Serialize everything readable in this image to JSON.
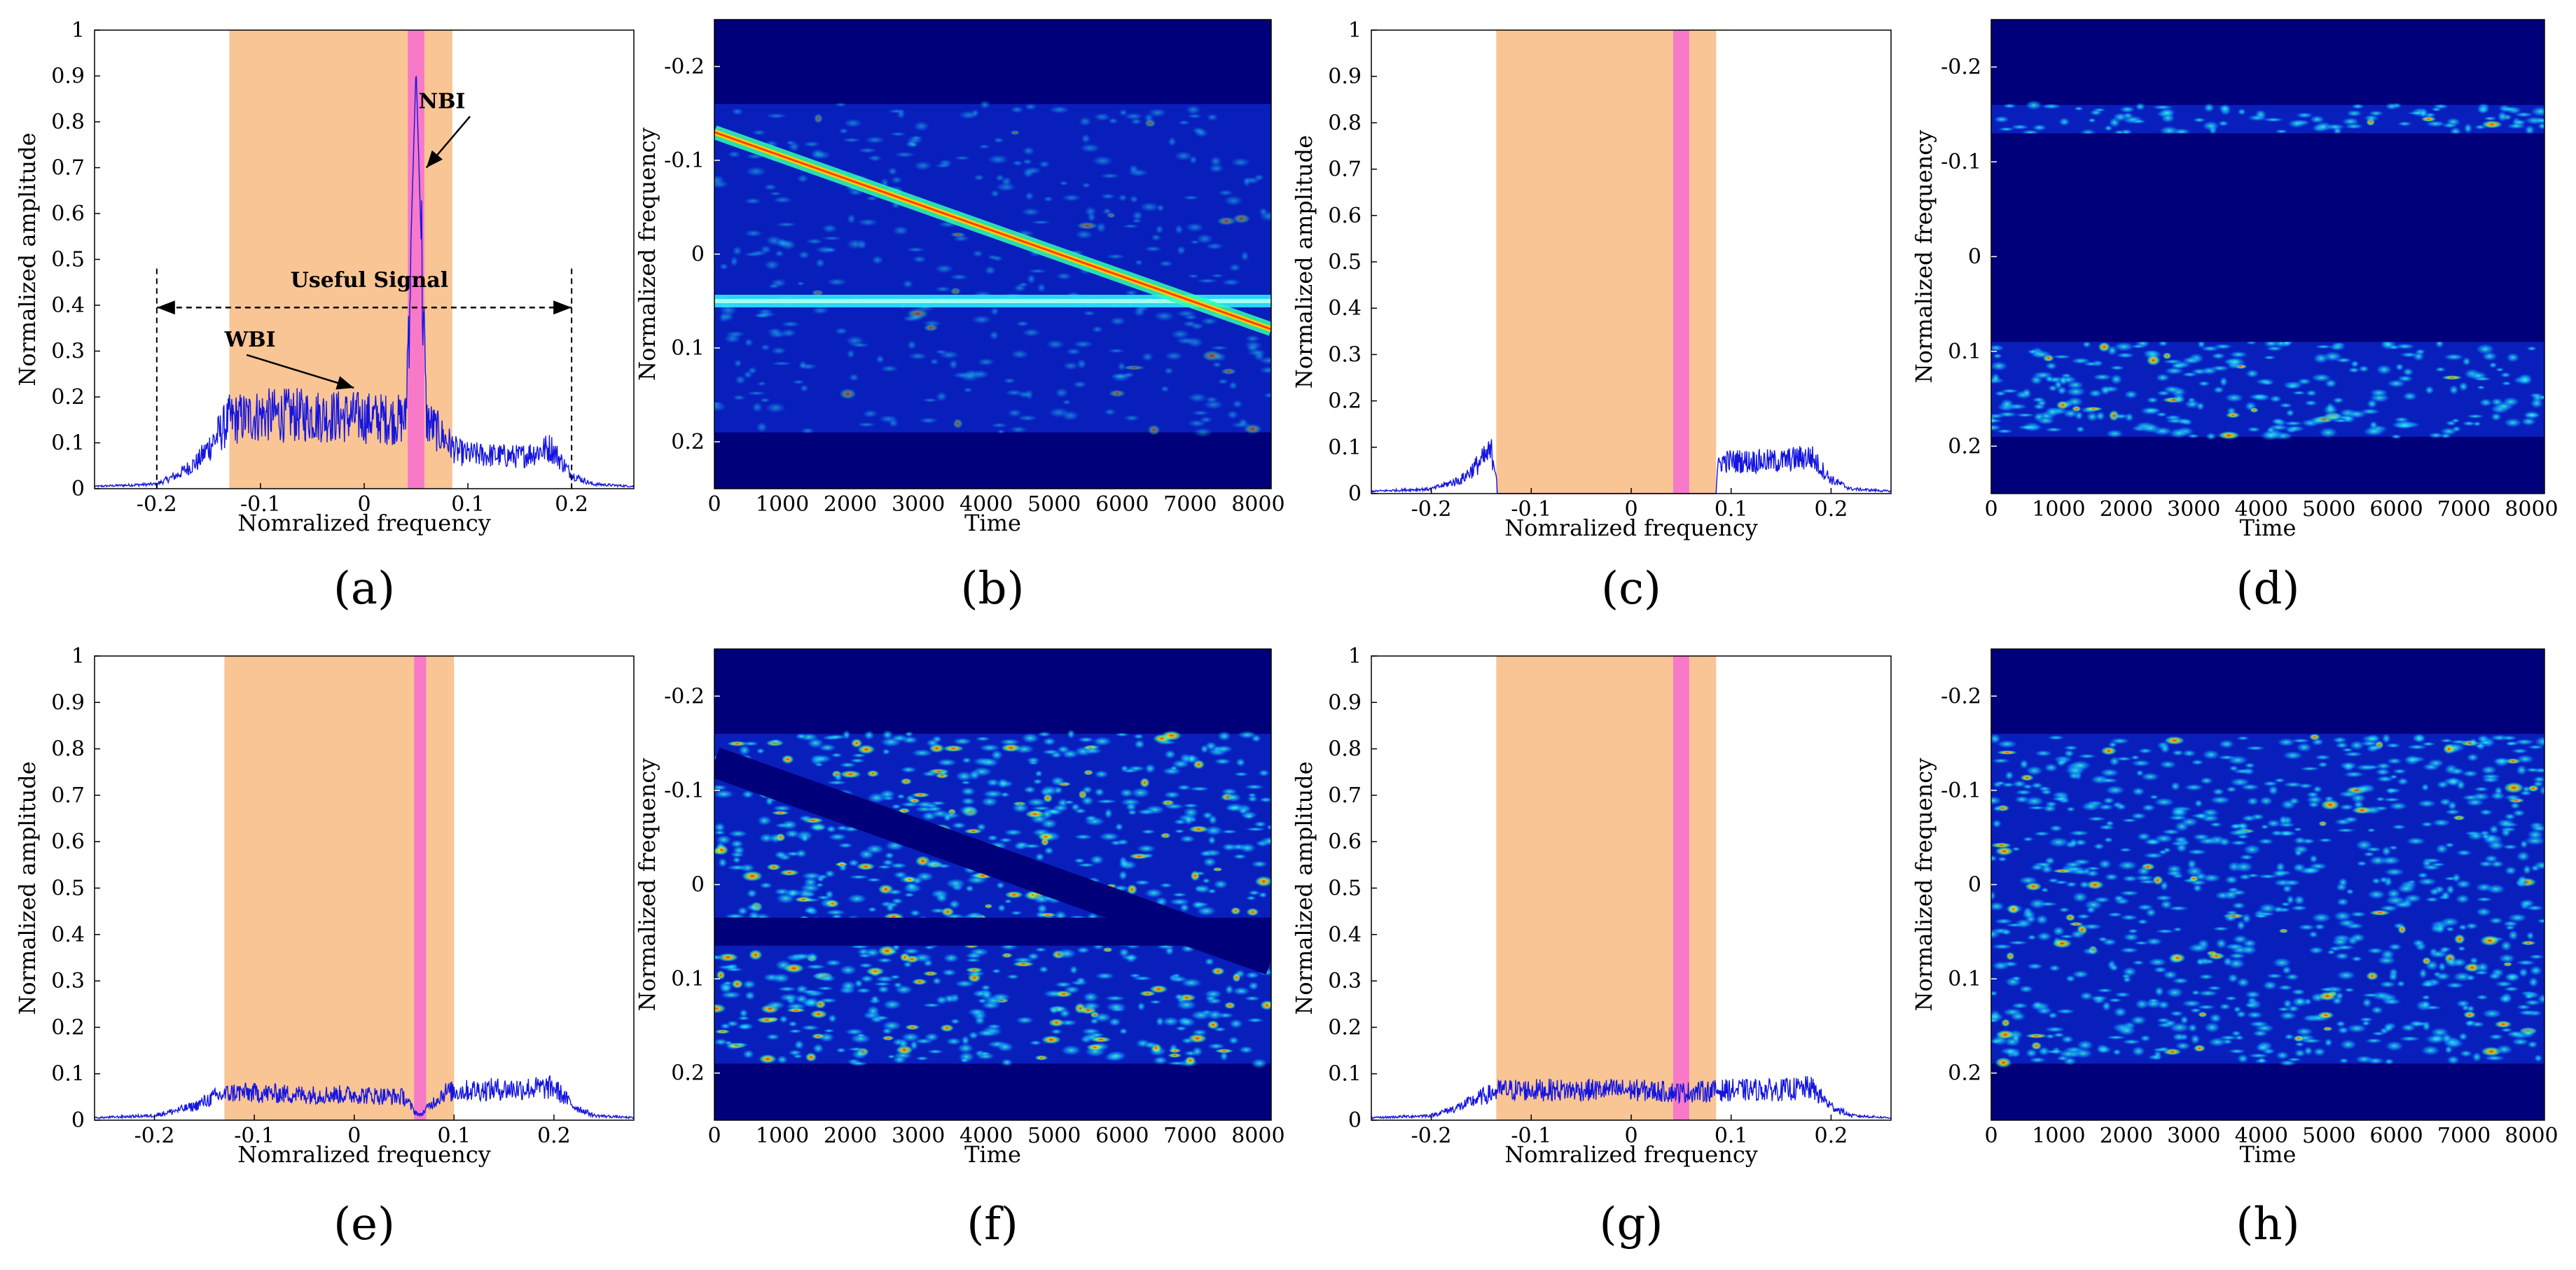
{
  "colors": {
    "band": "#f9c595",
    "nbi_band": "#f779c8",
    "trace": "#1515e0",
    "spec_bg": "#00007a",
    "axis": "#000000"
  },
  "chart_data": [
    {
      "panel": "(a)",
      "type": "line",
      "kind": "spectrum",
      "xlabel": "Nomralized frequency",
      "ylabel": "Normalized amplitude",
      "xlim": [
        -0.26,
        0.26
      ],
      "ylim": [
        0,
        1
      ],
      "xticks": [
        -0.2,
        -0.1,
        0,
        0.1,
        0.2
      ],
      "xtick_labels": [
        "-0.2",
        "-0.1",
        "0",
        "0.1",
        "0.2"
      ],
      "yticks": [
        0,
        0.1,
        0.2,
        0.3,
        0.4,
        0.5,
        0.6,
        0.7,
        0.8,
        0.9,
        1
      ],
      "ytick_labels": [
        "0",
        "0.1",
        "0.2",
        "0.3",
        "0.4",
        "0.5",
        "0.6",
        "0.7",
        "0.8",
        "0.9",
        "1"
      ],
      "band": [
        -0.13,
        0.085
      ],
      "nbi_band": [
        0.042,
        0.058
      ],
      "series": [
        {
          "name": "spectrum",
          "x": [
            -0.26,
            -0.2,
            -0.18,
            -0.16,
            -0.15,
            -0.14,
            -0.13,
            -0.1,
            -0.05,
            0,
            0.04,
            0.05,
            0.06,
            0.09,
            0.1,
            0.15,
            0.18,
            0.2,
            0.22,
            0.26
          ],
          "values": [
            0.005,
            0.01,
            0.03,
            0.06,
            0.09,
            0.12,
            0.15,
            0.16,
            0.16,
            0.155,
            0.15,
            0.92,
            0.15,
            0.08,
            0.075,
            0.07,
            0.09,
            0.03,
            0.01,
            0.005
          ]
        }
      ],
      "annotations": [
        {
          "text": "NBI",
          "x": 0.075,
          "y": 0.83,
          "ax": 0.06,
          "ay": 0.7
        },
        {
          "text": "WBI",
          "x": -0.11,
          "y": 0.31,
          "ax": -0.01,
          "ay": 0.22
        },
        {
          "text": "Useful Signal",
          "x": 0.005,
          "y": 0.44
        }
      ],
      "useful_range": [
        -0.2,
        0.2
      ],
      "useful_y": 0.395
    },
    {
      "panel": "(b)",
      "type": "heatmap",
      "kind": "spectrogram",
      "xlabel": "Time",
      "ylabel": "Normalized frequency",
      "xlim": [
        0,
        8192
      ],
      "ylim": [
        -0.25,
        0.25
      ],
      "xticks": [
        0,
        1000,
        2000,
        3000,
        4000,
        5000,
        6000,
        7000,
        8000
      ],
      "xtick_labels": [
        "0",
        "1000",
        "2000",
        "3000",
        "4000",
        "5000",
        "6000",
        "7000",
        "8000"
      ],
      "yticks": [
        -0.2,
        -0.1,
        0,
        0.1,
        0.2
      ],
      "ytick_labels": [
        "-0.2",
        "-0.1",
        "0",
        "0.1",
        "0.2"
      ],
      "signal_band": [
        -0.16,
        0.19
      ],
      "chirp": {
        "t": [
          0,
          8192
        ],
        "f": [
          -0.13,
          0.08
        ]
      },
      "nbi_freq": 0.05,
      "notch": false
    },
    {
      "panel": "(c)",
      "type": "line",
      "kind": "spectrum",
      "xlabel": "Nomralized frequency",
      "ylabel": "Normalized amplitude",
      "xlim": [
        -0.26,
        0.26
      ],
      "ylim": [
        0,
        1
      ],
      "xticks": [
        -0.2,
        -0.1,
        0,
        0.1,
        0.2
      ],
      "xtick_labels": [
        "-0.2",
        "-0.1",
        "0",
        "0.1",
        "0.2"
      ],
      "yticks": [
        0,
        0.1,
        0.2,
        0.3,
        0.4,
        0.5,
        0.6,
        0.7,
        0.8,
        0.9,
        1
      ],
      "ytick_labels": [
        "0",
        "0.1",
        "0.2",
        "0.3",
        "0.4",
        "0.5",
        "0.6",
        "0.7",
        "0.8",
        "0.9",
        "1"
      ],
      "band": [
        -0.135,
        0.085
      ],
      "nbi_band": [
        0.042,
        0.058
      ],
      "series": [
        {
          "name": "spectrum",
          "x": [
            -0.26,
            -0.2,
            -0.17,
            -0.15,
            -0.14,
            -0.135,
            -0.134,
            0.085,
            0.086,
            0.09,
            0.15,
            0.18,
            0.2,
            0.22,
            0.26
          ],
          "values": [
            0.005,
            0.01,
            0.03,
            0.07,
            0.09,
            0.05,
            0,
            0,
            0.05,
            0.07,
            0.07,
            0.08,
            0.03,
            0.01,
            0.005
          ]
        }
      ]
    },
    {
      "panel": "(d)",
      "type": "heatmap",
      "kind": "spectrogram",
      "xlabel": "Time",
      "ylabel": "Normalized frequency",
      "xlim": [
        0,
        8192
      ],
      "ylim": [
        -0.25,
        0.25
      ],
      "xticks": [
        0,
        1000,
        2000,
        3000,
        4000,
        5000,
        6000,
        7000,
        8000
      ],
      "xtick_labels": [
        "0",
        "1000",
        "2000",
        "3000",
        "4000",
        "5000",
        "6000",
        "7000",
        "8000"
      ],
      "yticks": [
        -0.2,
        -0.1,
        0,
        0.1,
        0.2
      ],
      "ytick_labels": [
        "-0.2",
        "-0.1",
        "0",
        "0.1",
        "0.2"
      ],
      "signal_band": [
        -0.16,
        0.19
      ],
      "empty_band": [
        -0.13,
        0.09
      ],
      "notch": false
    },
    {
      "panel": "(e)",
      "type": "line",
      "kind": "spectrum",
      "xlabel": "Nomralized frequency",
      "ylabel": "Normalized amplitude",
      "xlim": [
        -0.26,
        0.28
      ],
      "ylim": [
        0,
        1
      ],
      "xticks": [
        -0.2,
        -0.1,
        0,
        0.1,
        0.2
      ],
      "xtick_labels": [
        "-0.2",
        "-0.1",
        "0",
        "0.1",
        "0.2"
      ],
      "yticks": [
        0,
        0.1,
        0.2,
        0.3,
        0.4,
        0.5,
        0.6,
        0.7,
        0.8,
        0.9,
        1
      ],
      "ytick_labels": [
        "0",
        "0.1",
        "0.2",
        "0.3",
        "0.4",
        "0.5",
        "0.6",
        "0.7",
        "0.8",
        "0.9",
        "1"
      ],
      "band": [
        -0.13,
        0.1
      ],
      "nbi_band": [
        0.06,
        0.072
      ],
      "series": [
        {
          "name": "spectrum",
          "x": [
            -0.26,
            -0.2,
            -0.16,
            -0.14,
            -0.12,
            -0.05,
            0,
            0.05,
            0.06,
            0.066,
            0.075,
            0.09,
            0.12,
            0.2,
            0.22,
            0.24,
            0.28
          ],
          "values": [
            0.005,
            0.01,
            0.03,
            0.05,
            0.06,
            0.055,
            0.055,
            0.05,
            0.02,
            0.01,
            0.03,
            0.06,
            0.065,
            0.07,
            0.03,
            0.01,
            0.005
          ]
        }
      ]
    },
    {
      "panel": "(f)",
      "type": "heatmap",
      "kind": "spectrogram",
      "xlabel": "Time",
      "ylabel": "Normalized frequency",
      "xlim": [
        0,
        8192
      ],
      "ylim": [
        -0.25,
        0.25
      ],
      "xticks": [
        0,
        1000,
        2000,
        3000,
        4000,
        5000,
        6000,
        7000,
        8000
      ],
      "xtick_labels": [
        "0",
        "1000",
        "2000",
        "3000",
        "4000",
        "5000",
        "6000",
        "7000",
        "8000"
      ],
      "yticks": [
        -0.2,
        -0.1,
        0,
        0.1,
        0.2
      ],
      "ytick_labels": [
        "-0.2",
        "-0.1",
        "0",
        "0.1",
        "0.2"
      ],
      "signal_band": [
        -0.16,
        0.19
      ],
      "chirp": {
        "t": [
          0,
          8192
        ],
        "f": [
          -0.13,
          0.08
        ]
      },
      "nbi_freq": 0.05,
      "notch": true
    },
    {
      "panel": "(g)",
      "type": "line",
      "kind": "spectrum",
      "xlabel": "Nomralized frequency",
      "ylabel": "Normalized amplitude",
      "xlim": [
        -0.26,
        0.26
      ],
      "ylim": [
        0,
        1
      ],
      "xticks": [
        -0.2,
        -0.1,
        0,
        0.1,
        0.2
      ],
      "xtick_labels": [
        "-0.2",
        "-0.1",
        "0",
        "0.1",
        "0.2"
      ],
      "yticks": [
        0,
        0.1,
        0.2,
        0.3,
        0.4,
        0.5,
        0.6,
        0.7,
        0.8,
        0.9,
        1
      ],
      "ytick_labels": [
        "0",
        "0.1",
        "0.2",
        "0.3",
        "0.4",
        "0.5",
        "0.6",
        "0.7",
        "0.8",
        "0.9",
        "1"
      ],
      "band": [
        -0.135,
        0.085
      ],
      "nbi_band": [
        0.042,
        0.058
      ],
      "series": [
        {
          "name": "spectrum",
          "x": [
            -0.26,
            -0.2,
            -0.17,
            -0.15,
            -0.13,
            -0.05,
            0,
            0.05,
            0.1,
            0.15,
            0.18,
            0.2,
            0.22,
            0.26
          ],
          "values": [
            0.005,
            0.01,
            0.03,
            0.05,
            0.065,
            0.065,
            0.065,
            0.06,
            0.065,
            0.065,
            0.07,
            0.03,
            0.01,
            0.005
          ]
        }
      ]
    },
    {
      "panel": "(h)",
      "type": "heatmap",
      "kind": "spectrogram",
      "xlabel": "Time",
      "ylabel": "Normalized frequency",
      "xlim": [
        0,
        8192
      ],
      "ylim": [
        -0.25,
        0.25
      ],
      "xticks": [
        0,
        1000,
        2000,
        3000,
        4000,
        5000,
        6000,
        7000,
        8000
      ],
      "xtick_labels": [
        "0",
        "1000",
        "2000",
        "3000",
        "4000",
        "5000",
        "6000",
        "7000",
        "8000"
      ],
      "yticks": [
        -0.2,
        -0.1,
        0,
        0.1,
        0.2
      ],
      "ytick_labels": [
        "-0.2",
        "-0.1",
        "0",
        "0.1",
        "0.2"
      ],
      "signal_band": [
        -0.16,
        0.19
      ],
      "notch": false
    }
  ]
}
